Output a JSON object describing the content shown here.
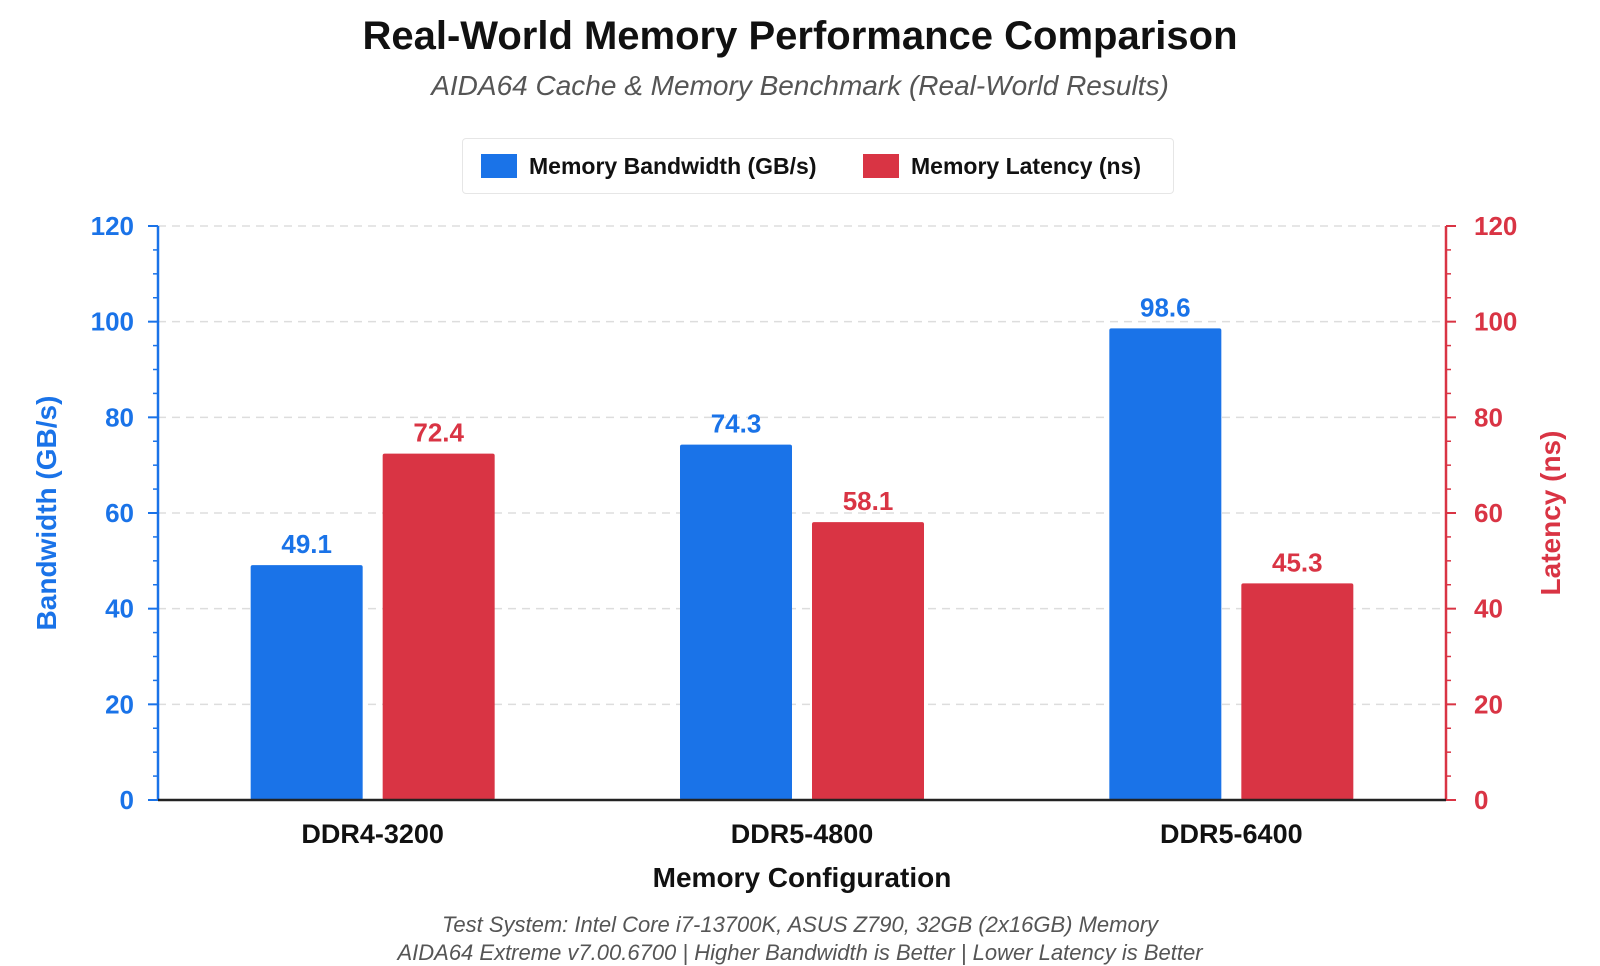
{
  "chart_data": {
    "type": "bar",
    "title": "Real-World Memory Performance Comparison",
    "subtitle": "AIDA64 Cache & Memory Benchmark (Real-World Results)",
    "categories": [
      "DDR4-3200",
      "DDR5-4800",
      "DDR5-6400"
    ],
    "series": [
      {
        "name": "Memory Bandwidth (GB/s)",
        "values": [
          49.1,
          74.3,
          98.6
        ],
        "color": "#1a73e8",
        "axis": "left"
      },
      {
        "name": "Memory Latency (ns)",
        "values": [
          72.4,
          58.1,
          45.3
        ],
        "color": "#d93444",
        "axis": "right"
      }
    ],
    "xlabel": "Memory Configuration",
    "ylabel": "Bandwidth (GB/s)",
    "y2label": "Latency (ns)",
    "ylim": [
      0,
      120
    ],
    "y2lim": [
      0,
      120
    ],
    "yticks": [
      0,
      20,
      40,
      60,
      80,
      100,
      120
    ],
    "left_axis_color": "#1a73e8",
    "right_axis_color": "#d93444",
    "grid": true,
    "legend_position": "top-center"
  },
  "footer": {
    "line1": "Test System: Intel Core i7-13700K, ASUS Z790, 32GB (2x16GB) Memory",
    "line2": "AIDA64 Extreme v7.00.6700 | Higher Bandwidth is Better | Lower Latency is Better"
  }
}
